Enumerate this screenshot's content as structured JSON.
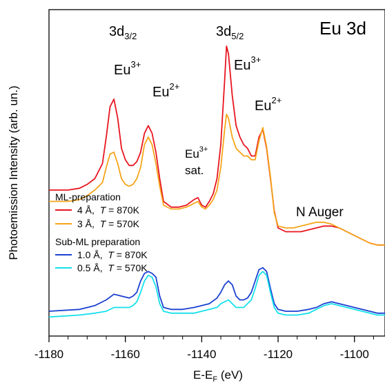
{
  "chart_data": {
    "type": "line",
    "title": "Eu 3d",
    "xlabel": "E-E",
    "xlabel_sub": "F",
    "xlabel_unit": " (eV)",
    "ylabel": "Photoemission Intensity (arb. un.)",
    "xlim": [
      -1180,
      -1092
    ],
    "x_ticks": [
      -1180,
      -1160,
      -1140,
      -1120,
      -1100
    ],
    "x_tick_labels": [
      "-1180",
      "-1160",
      "-1140",
      "-1120",
      "-1100"
    ],
    "grid": false,
    "y_ticks_shown": false,
    "legend": {
      "groups": [
        {
          "heading": "ML-preparation",
          "entries": [
            {
              "series": 0,
              "prefix": "4 Å,  ",
              "temp_var": "T",
              "temp_value": " = 870K"
            },
            {
              "series": 1,
              "prefix": "3 Å,  ",
              "temp_var": "T",
              "temp_value": " = 570K"
            }
          ]
        },
        {
          "heading": "Sub-ML preparation",
          "entries": [
            {
              "series": 2,
              "prefix": "1.0 Å,  ",
              "temp_var": "T",
              "temp_value": " = 870K"
            },
            {
              "series": 3,
              "prefix": "0.5 Å,  ",
              "temp_var": "T",
              "temp_value": " = 570K"
            }
          ]
        }
      ]
    },
    "annotations": {
      "d32_base": "3d",
      "d32_sub": "3/2",
      "d52_base": "3d",
      "d52_sub": "5/2",
      "eu": "Eu",
      "eu3": "3+",
      "eu2": "2+",
      "sat": "sat.",
      "auger": "N Auger"
    },
    "series": [
      {
        "color": "#e8141e",
        "x": [
          -1180,
          -1175,
          -1172,
          -1170,
          -1168,
          -1166,
          -1165,
          -1164,
          -1163,
          -1162,
          -1161,
          -1160,
          -1159,
          -1158,
          -1157,
          -1156,
          -1155,
          -1154,
          -1153,
          -1152,
          -1151,
          -1150,
          -1148,
          -1146,
          -1144,
          -1142,
          -1141,
          -1140,
          -1139,
          -1138,
          -1137,
          -1136,
          -1135,
          -1134,
          -1133.5,
          -1133,
          -1132,
          -1131,
          -1130,
          -1129,
          -1128,
          -1127,
          -1126,
          -1125,
          -1124,
          -1123,
          -1122,
          -1121,
          -1120,
          -1118,
          -1116,
          -1114,
          -1112,
          -1110,
          -1108,
          -1106,
          -1104,
          -1102,
          -1100,
          -1098,
          -1096,
          -1094,
          -1092
        ],
        "y": [
          0.8,
          0.8,
          0.85,
          0.95,
          1.1,
          1.5,
          2.2,
          3.0,
          3.2,
          2.7,
          1.9,
          1.6,
          1.45,
          1.45,
          1.55,
          1.8,
          2.3,
          2.5,
          2.3,
          1.8,
          1.1,
          0.5,
          0.35,
          0.35,
          0.4,
          0.55,
          0.6,
          0.4,
          0.35,
          0.5,
          0.7,
          1.1,
          2.0,
          3.7,
          4.6,
          4.4,
          3.3,
          2.5,
          2.2,
          2.0,
          1.9,
          1.7,
          1.7,
          2.2,
          2.4,
          1.9,
          1.1,
          0.25,
          -0.2,
          -0.3,
          -0.3,
          -0.3,
          -0.25,
          -0.2,
          -0.15,
          -0.15,
          -0.2,
          -0.3,
          -0.4,
          -0.5,
          -0.6,
          -0.65,
          -0.65
        ]
      },
      {
        "color": "#f5a418",
        "x": [
          -1180,
          -1175,
          -1172,
          -1170,
          -1168,
          -1166,
          -1165,
          -1164,
          -1163,
          -1162,
          -1161,
          -1160,
          -1159,
          -1158,
          -1157,
          -1156,
          -1155,
          -1154,
          -1153,
          -1152,
          -1151,
          -1150,
          -1148,
          -1146,
          -1144,
          -1142,
          -1141,
          -1140,
          -1139,
          -1138,
          -1137,
          -1136,
          -1135,
          -1134,
          -1133.5,
          -1133,
          -1132,
          -1131,
          -1130,
          -1129,
          -1128,
          -1127,
          -1126,
          -1125,
          -1124,
          -1123,
          -1122,
          -1121,
          -1120,
          -1118,
          -1116,
          -1114,
          -1112,
          -1110,
          -1108,
          -1106,
          -1104,
          -1102,
          -1100,
          -1098,
          -1096,
          -1094,
          -1092
        ],
        "y": [
          0.5,
          0.5,
          0.55,
          0.65,
          0.8,
          1.0,
          1.4,
          1.75,
          1.8,
          1.5,
          1.1,
          0.95,
          0.9,
          0.95,
          1.1,
          1.4,
          2.0,
          2.2,
          2.0,
          1.5,
          0.9,
          0.4,
          0.3,
          0.3,
          0.35,
          0.45,
          0.5,
          0.35,
          0.3,
          0.4,
          0.55,
          0.8,
          1.4,
          2.4,
          2.8,
          2.7,
          2.2,
          1.9,
          1.8,
          1.7,
          1.7,
          1.6,
          1.6,
          2.1,
          2.45,
          1.95,
          1.15,
          0.2,
          -0.15,
          -0.2,
          -0.2,
          -0.15,
          -0.1,
          -0.05,
          -0.05,
          -0.1,
          -0.2,
          -0.3,
          -0.4,
          -0.5,
          -0.6,
          -0.65,
          -0.65
        ]
      },
      {
        "color": "#1a3fd1",
        "x": [
          -1180,
          -1172,
          -1168,
          -1165,
          -1163,
          -1161,
          -1159,
          -1158,
          -1157,
          -1156,
          -1155,
          -1154,
          -1153,
          -1152,
          -1151,
          -1150,
          -1148,
          -1145,
          -1142,
          -1140,
          -1138,
          -1136,
          -1135,
          -1134,
          -1133,
          -1132,
          -1131,
          -1130,
          -1129,
          -1128,
          -1127,
          -1126,
          -1125,
          -1124,
          -1123,
          -1122,
          -1121,
          -1120,
          -1118,
          -1115,
          -1112,
          -1110,
          -1108,
          -1106,
          -1104,
          -1102,
          -1100,
          -1098,
          -1096,
          -1094,
          -1092
        ],
        "y": [
          -2.4,
          -2.35,
          -2.25,
          -2.1,
          -1.95,
          -2.0,
          -2.05,
          -2.0,
          -1.9,
          -1.6,
          -1.4,
          -1.35,
          -1.4,
          -1.5,
          -2.0,
          -2.3,
          -2.35,
          -2.35,
          -2.3,
          -2.25,
          -2.2,
          -2.05,
          -1.9,
          -1.7,
          -1.6,
          -1.7,
          -2.0,
          -2.1,
          -2.1,
          -2.05,
          -1.9,
          -1.6,
          -1.3,
          -1.25,
          -1.35,
          -1.8,
          -2.2,
          -2.35,
          -2.4,
          -2.4,
          -2.35,
          -2.3,
          -2.2,
          -2.15,
          -2.2,
          -2.25,
          -2.3,
          -2.35,
          -2.4,
          -2.45,
          -2.45
        ]
      },
      {
        "color": "#14e0ea",
        "x": [
          -1180,
          -1172,
          -1168,
          -1165,
          -1163,
          -1161,
          -1159,
          -1158,
          -1157,
          -1156,
          -1155,
          -1154,
          -1153,
          -1152,
          -1151,
          -1150,
          -1148,
          -1145,
          -1142,
          -1140,
          -1138,
          -1136,
          -1135,
          -1134,
          -1133,
          -1132,
          -1131,
          -1130,
          -1129,
          -1128,
          -1127,
          -1126,
          -1125,
          -1124,
          -1123,
          -1122,
          -1121,
          -1120,
          -1118,
          -1115,
          -1112,
          -1110,
          -1108,
          -1106,
          -1104,
          -1102,
          -1100,
          -1098,
          -1096,
          -1094,
          -1092
        ],
        "y": [
          -2.55,
          -2.5,
          -2.45,
          -2.4,
          -2.3,
          -2.3,
          -2.3,
          -2.25,
          -2.15,
          -1.9,
          -1.6,
          -1.45,
          -1.5,
          -1.75,
          -2.2,
          -2.4,
          -2.45,
          -2.45,
          -2.45,
          -2.4,
          -2.35,
          -2.3,
          -2.2,
          -2.15,
          -2.1,
          -2.2,
          -2.3,
          -2.3,
          -2.3,
          -2.2,
          -2.1,
          -1.8,
          -1.45,
          -1.35,
          -1.45,
          -1.9,
          -2.3,
          -2.45,
          -2.5,
          -2.5,
          -2.45,
          -2.35,
          -2.25,
          -2.2,
          -2.25,
          -2.3,
          -2.35,
          -2.4,
          -2.45,
          -2.5,
          -2.5
        ]
      }
    ]
  }
}
